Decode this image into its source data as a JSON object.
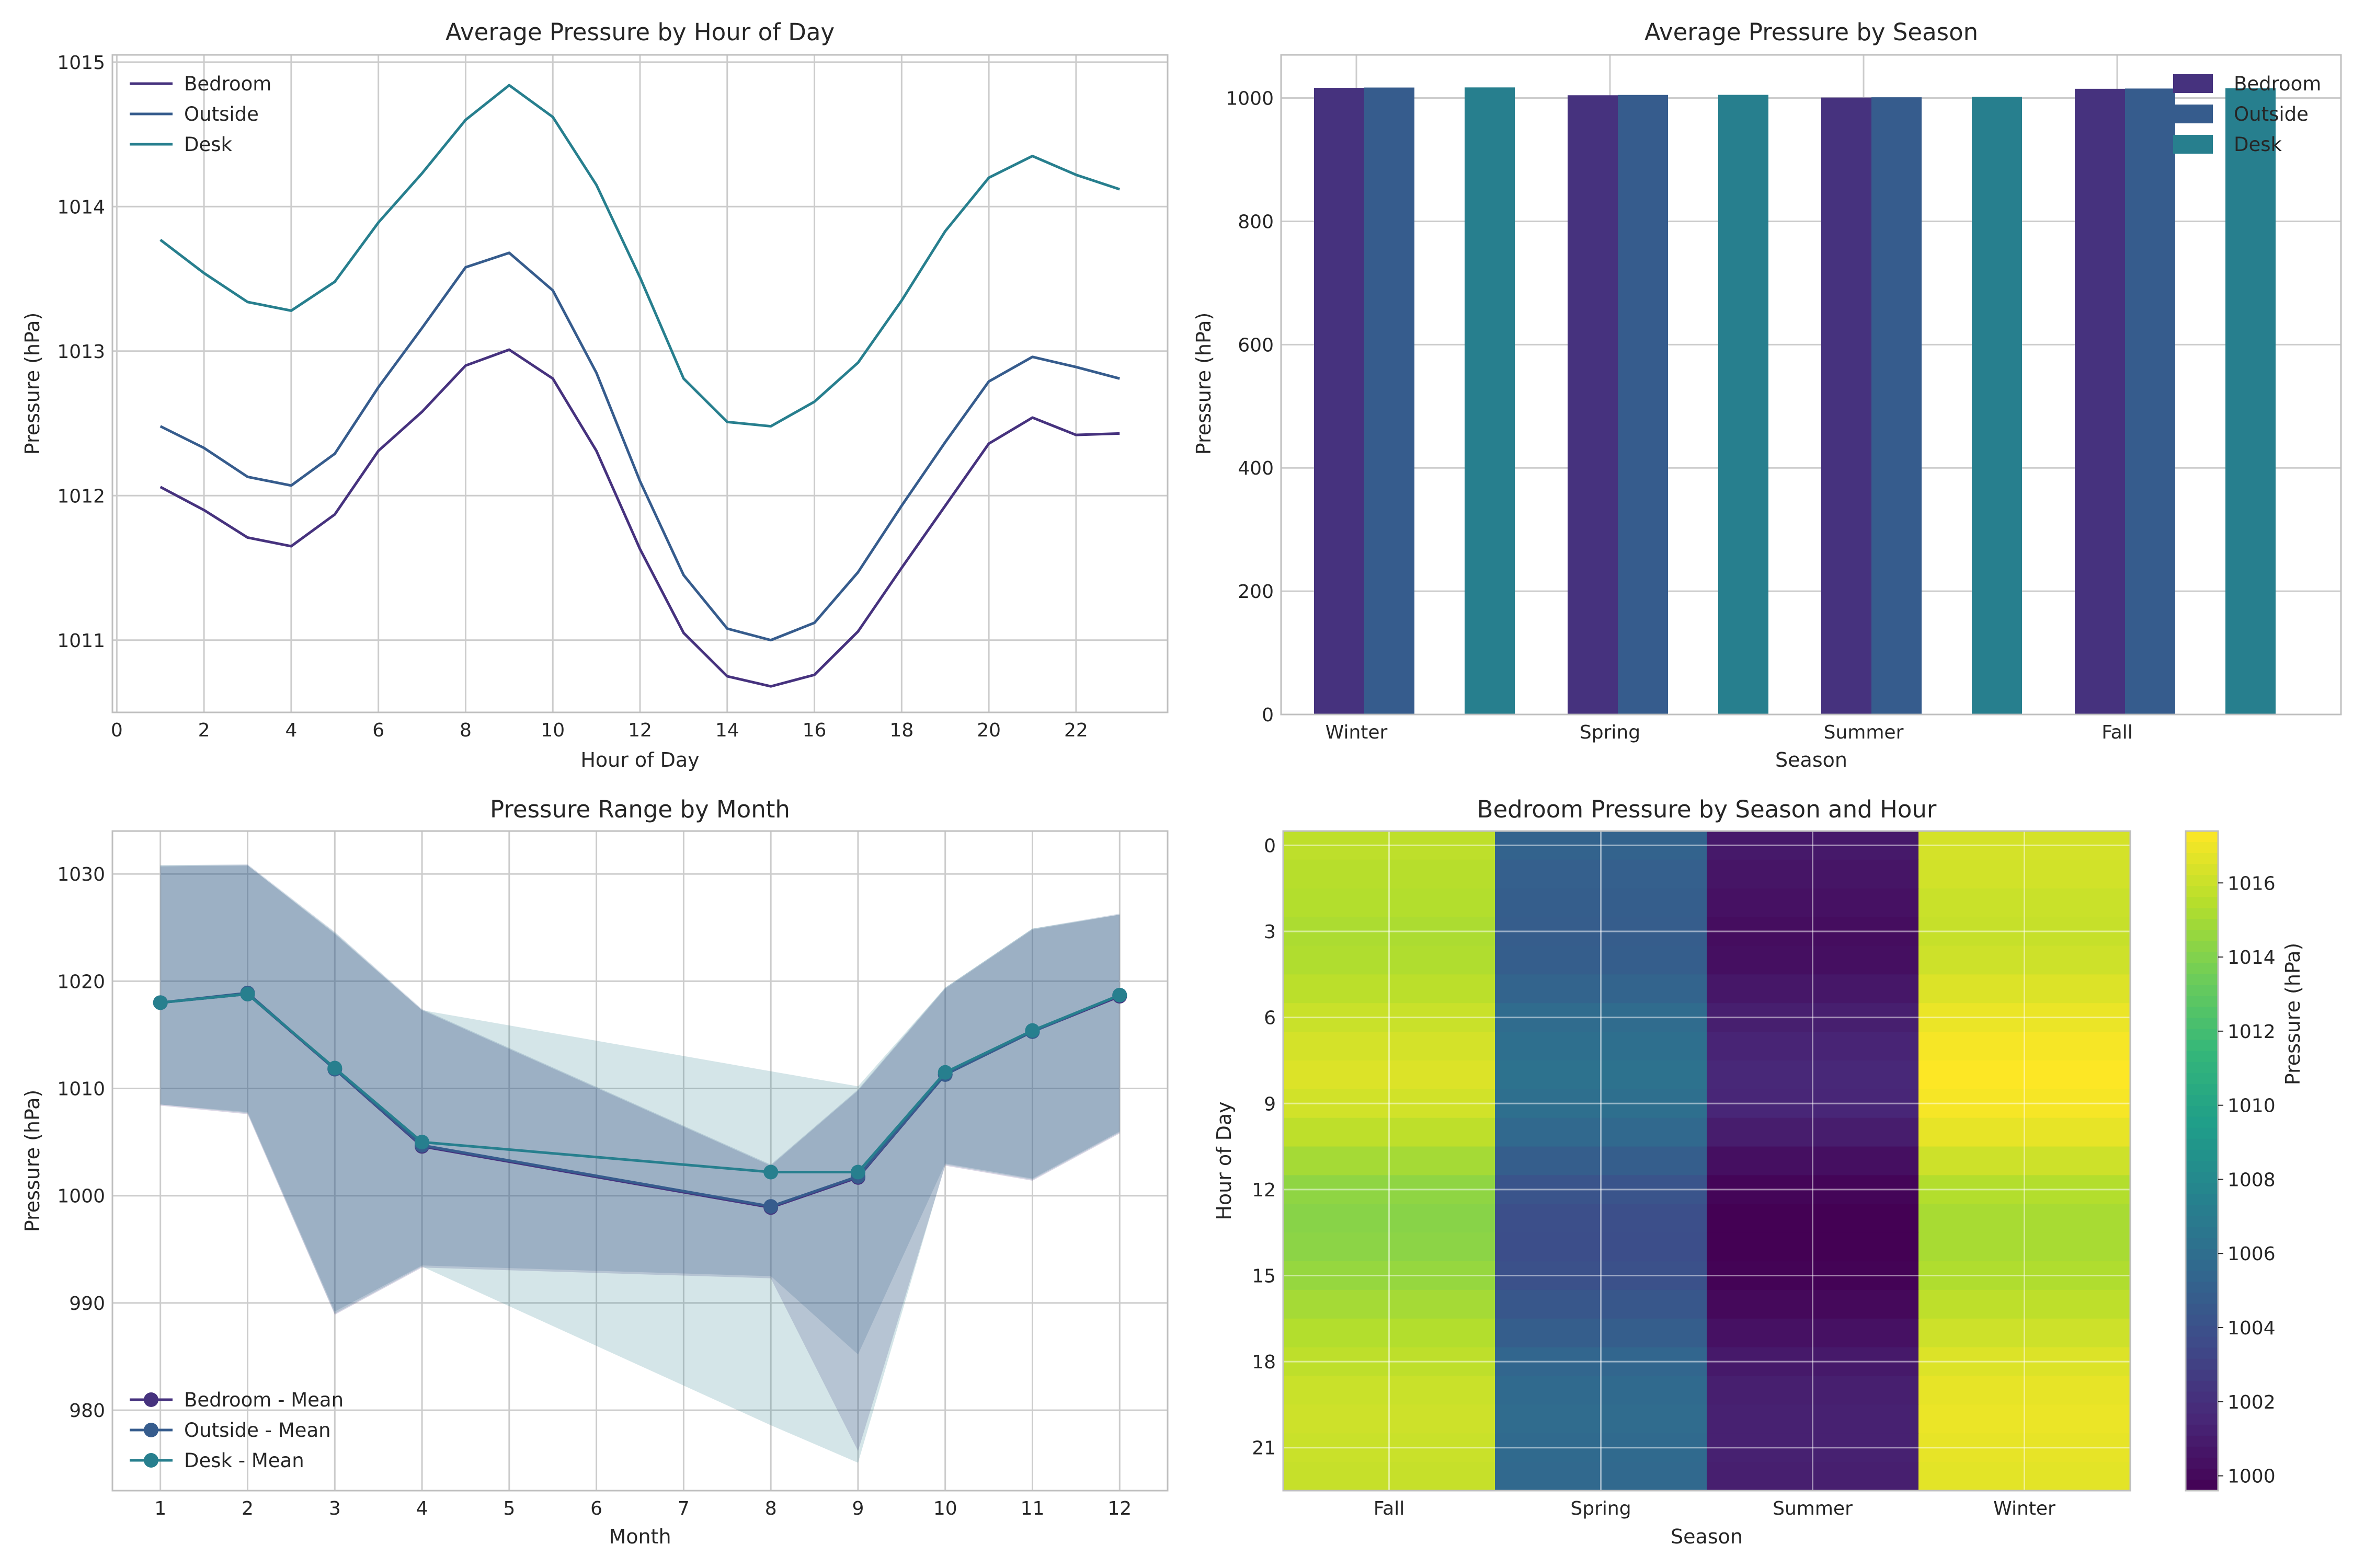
{
  "colors": {
    "bedroom": "#46327e",
    "outside": "#365c8d",
    "desk": "#277f8e"
  },
  "chart_data": [
    {
      "type": "line",
      "title": "Average Pressure by Hour of Day",
      "xlabel": "Hour of Day",
      "ylabel": "Pressure (hPa)",
      "xlim": [
        -0.1,
        24.1
      ],
      "ylim": [
        1010.5,
        1015.05
      ],
      "xticks": [
        0,
        2,
        4,
        6,
        8,
        10,
        12,
        14,
        16,
        18,
        20,
        22
      ],
      "yticks": [
        1011,
        1012,
        1013,
        1014,
        1015
      ],
      "grid": true,
      "legend": "top-left",
      "x": [
        1,
        2,
        3,
        4,
        5,
        6,
        7,
        8,
        9,
        10,
        11,
        12,
        13,
        14,
        15,
        16,
        17,
        18,
        19,
        20,
        21,
        22,
        23
      ],
      "series": [
        {
          "name": "Bedroom",
          "values": [
            1012.06,
            1011.9,
            1011.71,
            1011.65,
            1011.87,
            1012.31,
            1012.58,
            1012.9,
            1013.01,
            1012.81,
            1012.31,
            1011.63,
            1011.05,
            1010.75,
            1010.68,
            1010.76,
            1011.06,
            1011.5,
            1011.93,
            1012.36,
            1012.54,
            1012.42,
            1012.43
          ]
        },
        {
          "name": "Outside",
          "values": [
            1012.48,
            1012.33,
            1012.13,
            1012.07,
            1012.29,
            1012.75,
            1013.16,
            1013.58,
            1013.68,
            1013.42,
            1012.85,
            1012.1,
            1011.45,
            1011.08,
            1011.0,
            1011.12,
            1011.47,
            1011.93,
            1012.37,
            1012.79,
            1012.96,
            1012.89,
            1012.81
          ]
        },
        {
          "name": "Desk",
          "values": [
            1013.77,
            1013.54,
            1013.34,
            1013.28,
            1013.48,
            1013.89,
            1014.23,
            1014.6,
            1014.84,
            1014.62,
            1014.15,
            1013.51,
            1012.81,
            1012.51,
            1012.48,
            1012.65,
            1012.92,
            1013.35,
            1013.83,
            1014.2,
            1014.35,
            1014.22,
            1014.12
          ]
        }
      ]
    },
    {
      "type": "bar",
      "title": "Average Pressure by Season",
      "xlabel": "Season",
      "ylabel": "Pressure (hPa)",
      "ylim": [
        0,
        1070
      ],
      "yticks": [
        0,
        200,
        400,
        600,
        800,
        1000
      ],
      "grid": true,
      "legend": "top-right",
      "categories": [
        "Winter",
        "Spring",
        "Summer",
        "Fall"
      ],
      "series": [
        {
          "name": "Bedroom",
          "values": [
            1016.6,
            1004.5,
            1000.8,
            1015.0
          ]
        },
        {
          "name": "Outside",
          "values": [
            1017.0,
            1005.0,
            1001.2,
            1015.4
          ]
        },
        {
          "name": "Desk",
          "values": [
            1017.2,
            1005.2,
            1002.0,
            1015.8
          ]
        }
      ]
    },
    {
      "type": "line",
      "title": "Pressure Range by Month",
      "xlabel": "Month",
      "ylabel": "Pressure (hPa)",
      "xlim": [
        0.45,
        12.55
      ],
      "ylim": [
        972.5,
        1034
      ],
      "xticks": [
        1,
        2,
        3,
        4,
        5,
        6,
        7,
        8,
        9,
        10,
        11,
        12
      ],
      "yticks": [
        980,
        990,
        1000,
        1010,
        1020,
        1030
      ],
      "grid": true,
      "legend": "bottom-left",
      "x": [
        1,
        2,
        3,
        4,
        8,
        9,
        10,
        11,
        12
      ],
      "series": [
        {
          "name": "Bedroom - Mean",
          "values": [
            1018.0,
            1018.8,
            1011.8,
            1004.6,
            998.9,
            1001.7,
            1011.3,
            1015.3,
            1018.6
          ],
          "min": [
            1008.4,
            1007.6,
            988.9,
            993.3,
            992.3,
            976.2,
            1002.8,
            1001.4,
            1005.8
          ],
          "max": [
            1030.7,
            1030.8,
            1024.4,
            1017.3,
            1002.8,
            1009.8,
            1019.3,
            1024.8,
            1026.2
          ]
        },
        {
          "name": "Outside - Mean",
          "values": [
            1018.0,
            1018.9,
            1011.8,
            1004.7,
            999.0,
            1001.8,
            1011.3,
            1015.3,
            1018.7
          ],
          "min": [
            1008.5,
            1007.8,
            989.2,
            993.5,
            992.5,
            985.2,
            1003.0,
            1001.6,
            1006.0
          ],
          "max": [
            1030.8,
            1030.9,
            1024.6,
            1017.4,
            1002.9,
            1009.9,
            1019.4,
            1024.9,
            1026.3
          ]
        },
        {
          "name": "Desk - Mean",
          "values": [
            1018.0,
            1018.8,
            1011.9,
            1005.0,
            1002.2,
            1002.2,
            1011.5,
            1015.4,
            1018.7
          ],
          "min": [
            1008.5,
            1007.7,
            989.0,
            993.4,
            978.6,
            975.1,
            1002.9,
            1001.5,
            1005.9
          ],
          "max": [
            1030.8,
            1030.8,
            1024.5,
            1017.3,
            1011.6,
            1010.2,
            1019.4,
            1024.9,
            1026.2
          ]
        }
      ]
    },
    {
      "type": "heatmap",
      "title": "Bedroom Pressure by Season and Hour",
      "xlabel": "Season",
      "ylabel": "Hour of Day",
      "categories": [
        "Fall",
        "Spring",
        "Summer",
        "Winter"
      ],
      "hours": [
        0,
        1,
        2,
        3,
        4,
        5,
        6,
        7,
        8,
        9,
        10,
        11,
        12,
        13,
        14,
        15,
        16,
        17,
        18,
        19,
        20,
        21,
        22
      ],
      "yticks": [
        0,
        3,
        6,
        9,
        12,
        15,
        18,
        21
      ],
      "colorbar_label": "Pressure (hPa)",
      "colorbar_range": [
        999.6,
        1017.4
      ],
      "colorbar_ticks": [
        1000,
        1002,
        1004,
        1006,
        1008,
        1010,
        1012,
        1014,
        1016
      ],
      "values": [
        [
          1015.7,
          1005.2,
          1000.8,
          1016.3
        ],
        [
          1015.5,
          1005.0,
          1000.6,
          1016.2
        ],
        [
          1015.4,
          1004.9,
          1000.4,
          1016.0
        ],
        [
          1015.2,
          1004.8,
          1000.2,
          1015.9
        ],
        [
          1015.3,
          1004.9,
          1000.3,
          1016.1
        ],
        [
          1015.6,
          1005.3,
          1000.7,
          1016.5
        ],
        [
          1016.0,
          1005.8,
          1001.1,
          1016.9
        ],
        [
          1016.3,
          1006.1,
          1001.4,
          1017.2
        ],
        [
          1016.5,
          1006.3,
          1001.6,
          1017.4
        ],
        [
          1016.2,
          1006.1,
          1001.5,
          1017.2
        ],
        [
          1015.7,
          1005.6,
          1001.0,
          1016.8
        ],
        [
          1015.0,
          1004.9,
          1000.3,
          1016.1
        ],
        [
          1014.4,
          1004.2,
          999.8,
          1015.4
        ],
        [
          1014.2,
          1003.9,
          999.6,
          1015.1
        ],
        [
          1014.3,
          1003.8,
          999.6,
          1015.1
        ],
        [
          1014.6,
          1004.0,
          999.7,
          1015.3
        ],
        [
          1015.0,
          1004.4,
          1000.0,
          1015.7
        ],
        [
          1015.4,
          1004.9,
          1000.4,
          1016.1
        ],
        [
          1015.7,
          1005.4,
          1000.8,
          1016.5
        ],
        [
          1016.0,
          1005.7,
          1001.1,
          1016.8
        ],
        [
          1016.1,
          1005.8,
          1001.2,
          1016.9
        ],
        [
          1016.0,
          1005.7,
          1001.2,
          1016.8
        ],
        [
          1015.9,
          1005.6,
          1001.1,
          1016.7
        ]
      ]
    }
  ]
}
